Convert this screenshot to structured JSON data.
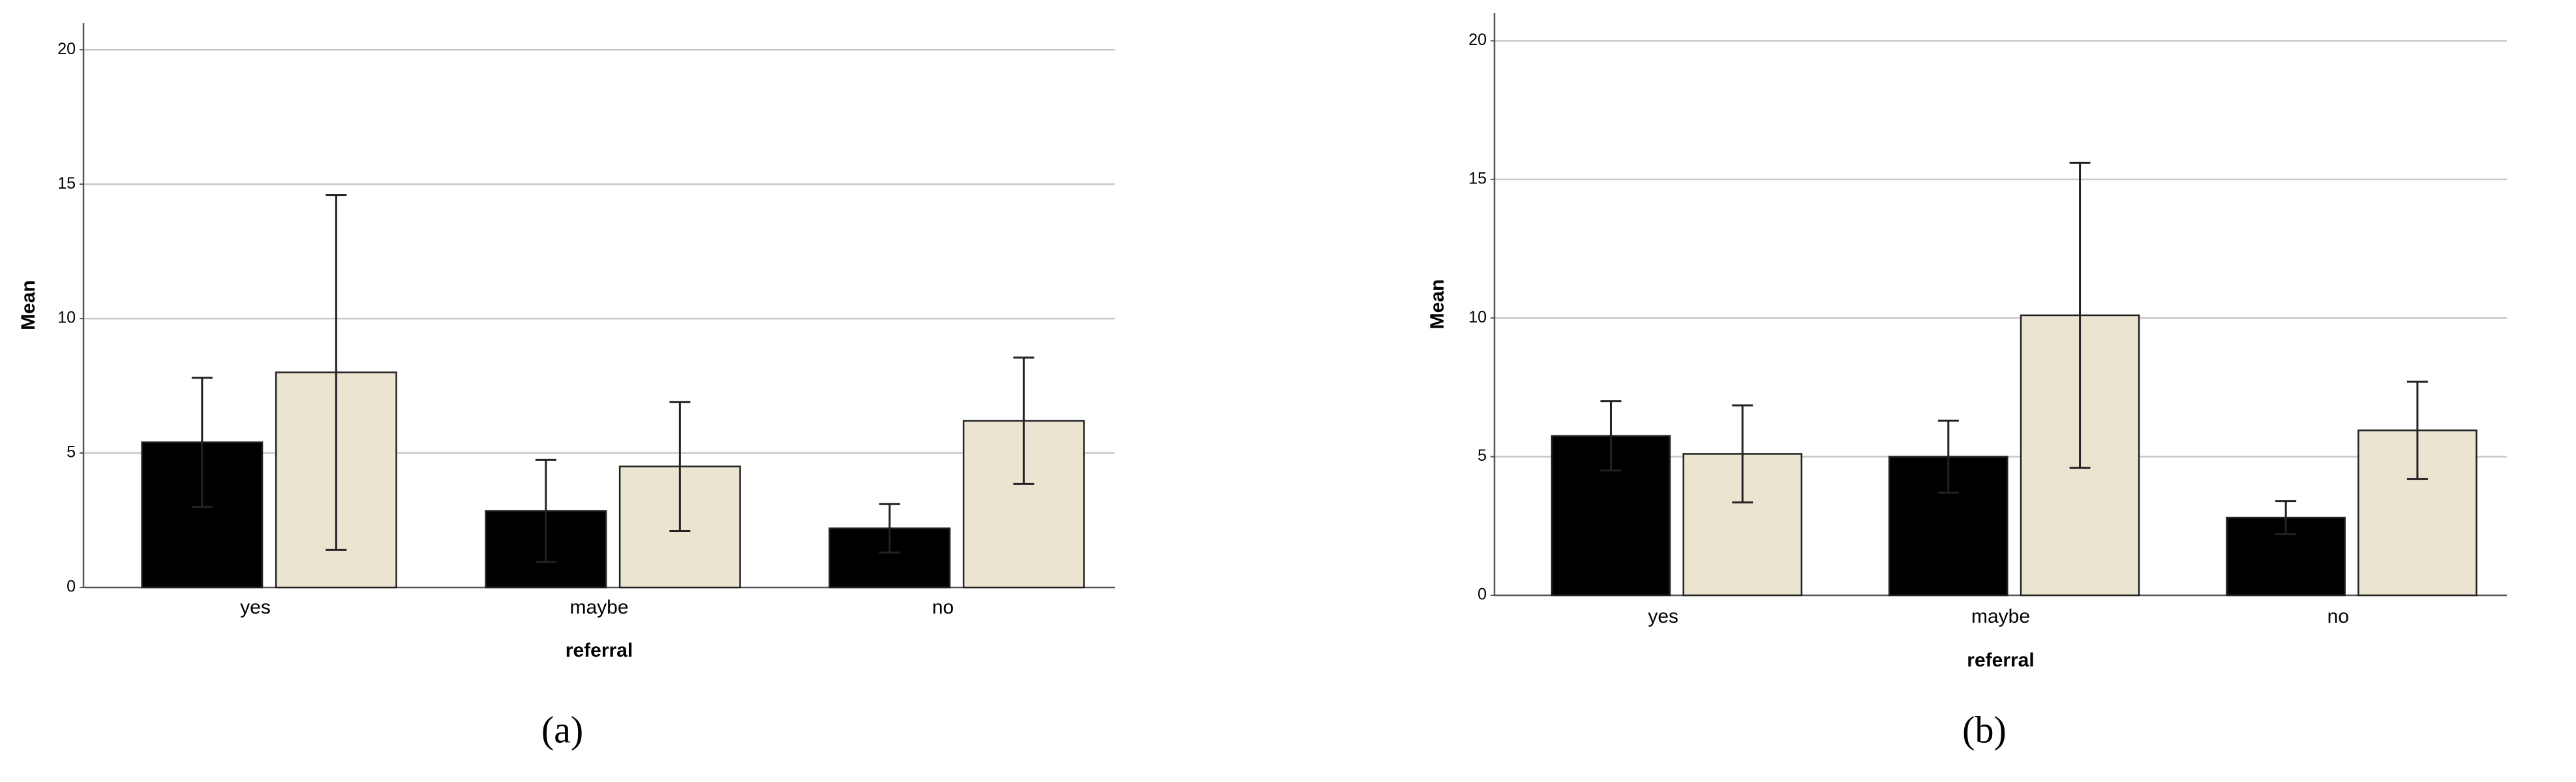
{
  "chart_data": [
    {
      "type": "bar",
      "caption": "(a)",
      "x_label": "referral",
      "y_label": "Mean",
      "categories": [
        "yes",
        "maybe",
        "no"
      ],
      "series": [
        {
          "color": "#000000",
          "values": [
            5.4,
            2.85,
            2.2
          ],
          "errors": [
            2.4,
            1.9,
            0.9
          ]
        },
        {
          "color": "#ebe4d1",
          "values": [
            8.0,
            4.5,
            6.2
          ],
          "errors": [
            6.6,
            2.4,
            2.35
          ]
        }
      ],
      "ylim": [
        0,
        21
      ],
      "yticks": [
        0,
        5,
        10,
        15,
        20
      ],
      "grid": true
    },
    {
      "type": "bar",
      "caption": "(b)",
      "x_label": "referral",
      "y_label": "Mean",
      "categories": [
        "yes",
        "maybe",
        "no"
      ],
      "series": [
        {
          "color": "#000000",
          "values": [
            5.75,
            5.0,
            2.8
          ],
          "errors": [
            1.25,
            1.3,
            0.6
          ]
        },
        {
          "color": "#ebe4d1",
          "values": [
            5.1,
            10.1,
            5.95
          ],
          "errors": [
            1.75,
            5.5,
            1.75
          ]
        }
      ],
      "ylim": [
        0,
        21
      ],
      "yticks": [
        0,
        5,
        10,
        15,
        20
      ],
      "grid": true
    }
  ]
}
